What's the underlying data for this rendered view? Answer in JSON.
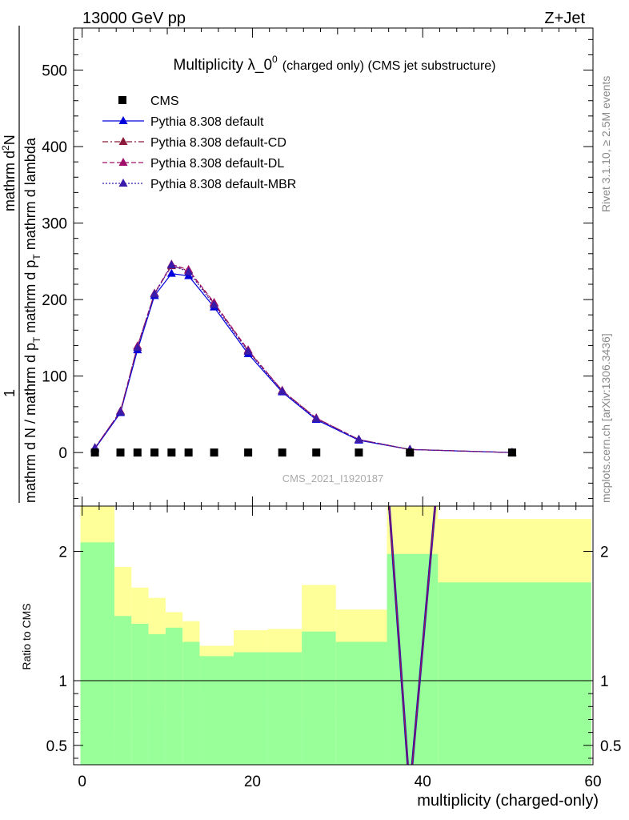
{
  "header": {
    "energy_label": "13000 GeV pp",
    "process_label": "Z+Jet"
  },
  "side_labels": {
    "rivet": "Rivet 3.1.10, ≥ 2.5M events",
    "mcplots": "mcplots.cern.ch [arXiv:1306.3436]"
  },
  "watermark": "CMS_2021_I1920187",
  "chart_data": [
    {
      "type": "line",
      "title_main": "Multiplicity λ_0",
      "title_sup": "0",
      "title_rest": "(charged only) (CMS jet substructure)",
      "ylabel_parts": [
        "mathrm d N / mathrm d p",
        "T",
        " mathrm d p",
        "T",
        " mathrm d lambda",
        "1",
        "mathrm d",
        "2",
        "N"
      ],
      "ylim": [
        -70,
        555
      ],
      "xlim": [
        -1,
        60
      ],
      "yticks": [
        0,
        100,
        200,
        300,
        400,
        500
      ],
      "xticks": [
        0,
        20,
        40,
        60
      ],
      "legend_position": "top-left",
      "legend": [
        {
          "name": "CMS",
          "marker": "square",
          "color": "#000000",
          "dash": "none"
        },
        {
          "name": "Pythia 8.308 default",
          "marker": "triangle",
          "color": "#0000dd",
          "dash": "solid"
        },
        {
          "name": "Pythia 8.308 default-CD",
          "marker": "triangle",
          "color": "#8b1a3a",
          "dash": "dashdot"
        },
        {
          "name": "Pythia 8.308 default-DL",
          "marker": "triangle",
          "color": "#a0106a",
          "dash": "dashed"
        },
        {
          "name": "Pythia 8.308 default-MBR",
          "marker": "triangle",
          "color": "#3a1aa8",
          "dash": "dotted"
        }
      ],
      "x": [
        1.5,
        4.5,
        6.5,
        8.5,
        10.5,
        12.5,
        15.5,
        19.5,
        23.5,
        27.5,
        32.5,
        38.5,
        50.5
      ],
      "data_points": {
        "name": "CMS",
        "values": [
          0,
          0,
          0,
          0,
          0,
          0,
          0,
          0,
          0,
          0,
          0,
          0,
          0
        ]
      },
      "series": [
        {
          "name": "Pythia 8.308 default",
          "values": [
            5,
            52,
            134,
            205,
            234,
            231,
            190,
            129,
            79,
            43,
            16,
            4,
            0
          ]
        },
        {
          "name": "Pythia 8.308 default-CD",
          "values": [
            6,
            54,
            139,
            208,
            244,
            238,
            195,
            133,
            81,
            45,
            17,
            4,
            0
          ]
        },
        {
          "name": "Pythia 8.308 default-DL",
          "values": [
            6,
            54,
            139,
            208,
            246,
            239,
            196,
            134,
            81,
            45,
            17,
            4,
            0
          ]
        },
        {
          "name": "Pythia 8.308 default-MBR",
          "values": [
            6,
            53,
            137,
            207,
            245,
            236,
            193,
            132,
            80,
            44,
            17,
            4,
            0
          ]
        }
      ]
    },
    {
      "type": "area",
      "ylabel": "Ratio to CMS",
      "ylim": [
        0.35,
        2.35
      ],
      "yticks": [
        0.5,
        1,
        2
      ],
      "xlabel": "multiplicity (charged-only)",
      "band_colors": {
        "inner": "#99ff99",
        "outer": "#ffff99"
      },
      "bands": [
        {
          "x": [
            -0.2,
            3.8
          ],
          "inner": [
            0.35,
            2.07
          ],
          "outer": [
            0.35,
            2.35
          ]
        },
        {
          "x": [
            3.8,
            5.8
          ],
          "inner": [
            0.35,
            1.5
          ],
          "outer": [
            0.6,
            1.88
          ]
        },
        {
          "x": [
            5.8,
            7.8
          ],
          "inner": [
            0.35,
            1.44
          ],
          "outer": [
            0.69,
            1.72
          ]
        },
        {
          "x": [
            7.8,
            9.8
          ],
          "inner": [
            0.35,
            1.36
          ],
          "outer": [
            0.83,
            1.64
          ]
        },
        {
          "x": [
            9.8,
            11.8
          ],
          "inner": [
            0.35,
            1.41
          ],
          "outer": [
            0.74,
            1.53
          ]
        },
        {
          "x": [
            11.8,
            13.8
          ],
          "inner": [
            0.35,
            1.3
          ],
          "outer": [
            0.84,
            1.46
          ]
        },
        {
          "x": [
            13.8,
            17.8
          ],
          "inner": [
            0.35,
            1.19
          ],
          "outer": [
            0.9,
            1.27
          ]
        },
        {
          "x": [
            17.8,
            21.8
          ],
          "inner": [
            0.35,
            1.22
          ],
          "outer": [
            0.87,
            1.39
          ]
        },
        {
          "x": [
            21.8,
            25.8
          ],
          "inner": [
            0.35,
            1.22
          ],
          "outer": [
            0.86,
            1.4
          ]
        },
        {
          "x": [
            25.8,
            29.8
          ],
          "inner": [
            0.35,
            1.38
          ],
          "outer": [
            0.72,
            1.74
          ]
        },
        {
          "x": [
            29.8,
            35.8
          ],
          "inner": [
            0.35,
            1.3
          ],
          "outer": [
            0.8,
            1.55
          ]
        },
        {
          "x": [
            35.8,
            41.8
          ],
          "inner": [
            0.35,
            1.98
          ],
          "outer": [
            0.35,
            2.35
          ]
        },
        {
          "x": [
            41.8,
            59.8
          ],
          "inner": [
            0.35,
            1.76
          ],
          "outer": [
            0.35,
            2.25
          ]
        }
      ],
      "ratio_lines": {
        "x": [
          35.8,
          38.3,
          38.7,
          41.8
        ],
        "y": [
          2.6,
          0.3,
          0.3,
          2.6
        ]
      }
    }
  ]
}
